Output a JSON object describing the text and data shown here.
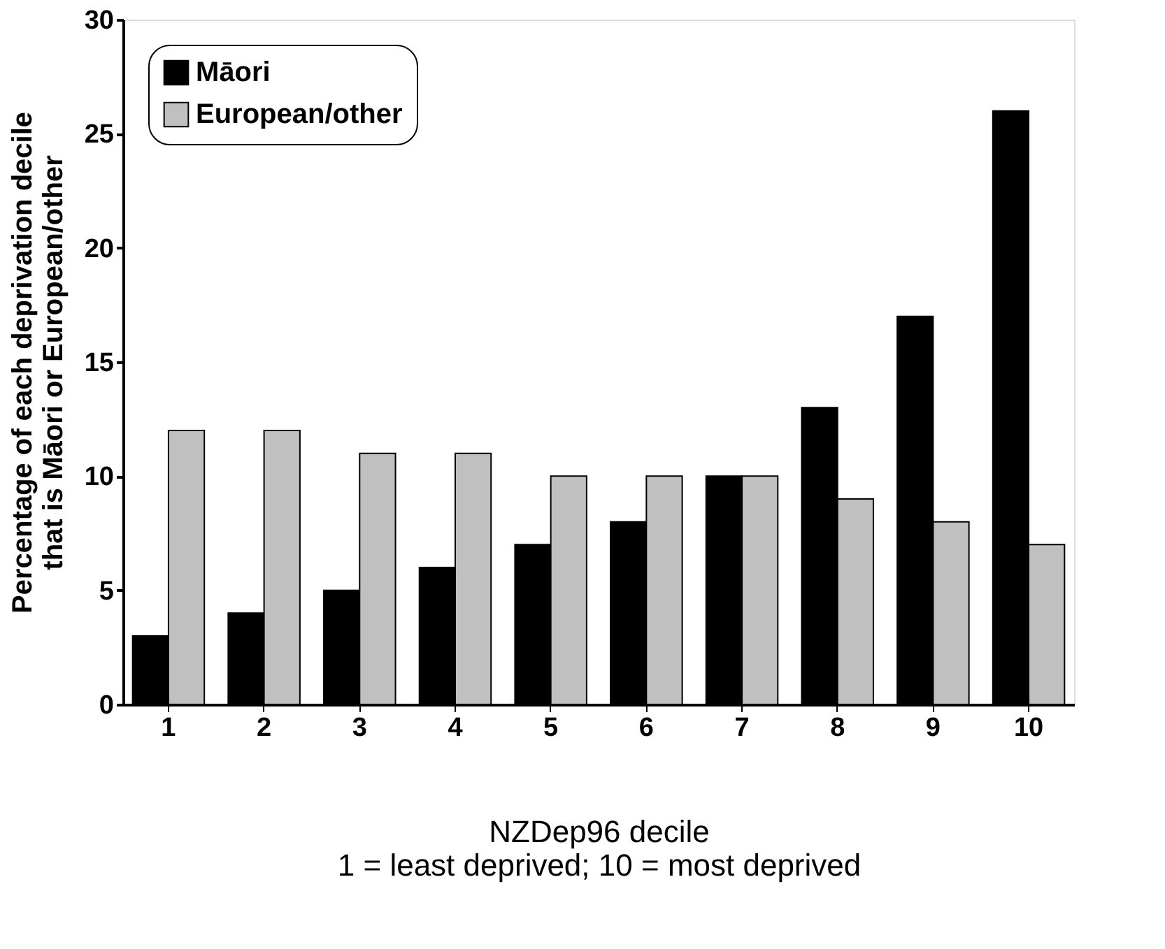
{
  "chart_data": {
    "type": "bar",
    "xlabel": "NZDep96 decile\n1 = least deprived; 10 = most deprived",
    "ylabel": "Percentage of each deprivation decile\nthat is Māori or European/other",
    "categories": [
      "1",
      "2",
      "3",
      "4",
      "5",
      "6",
      "7",
      "8",
      "9",
      "10"
    ],
    "series": [
      {
        "name": "Māori",
        "color": "#000000",
        "values": [
          3,
          4,
          5,
          6,
          7,
          8,
          10,
          13,
          17,
          26
        ]
      },
      {
        "name": "European/other",
        "color": "#c0c0c0",
        "values": [
          12,
          12,
          11,
          11,
          10,
          10,
          10,
          9,
          8,
          7
        ]
      }
    ],
    "ylim": [
      0,
      30
    ],
    "yticks": [
      0,
      5,
      10,
      15,
      20,
      25,
      30
    ],
    "grid": false,
    "legend": "top left"
  }
}
